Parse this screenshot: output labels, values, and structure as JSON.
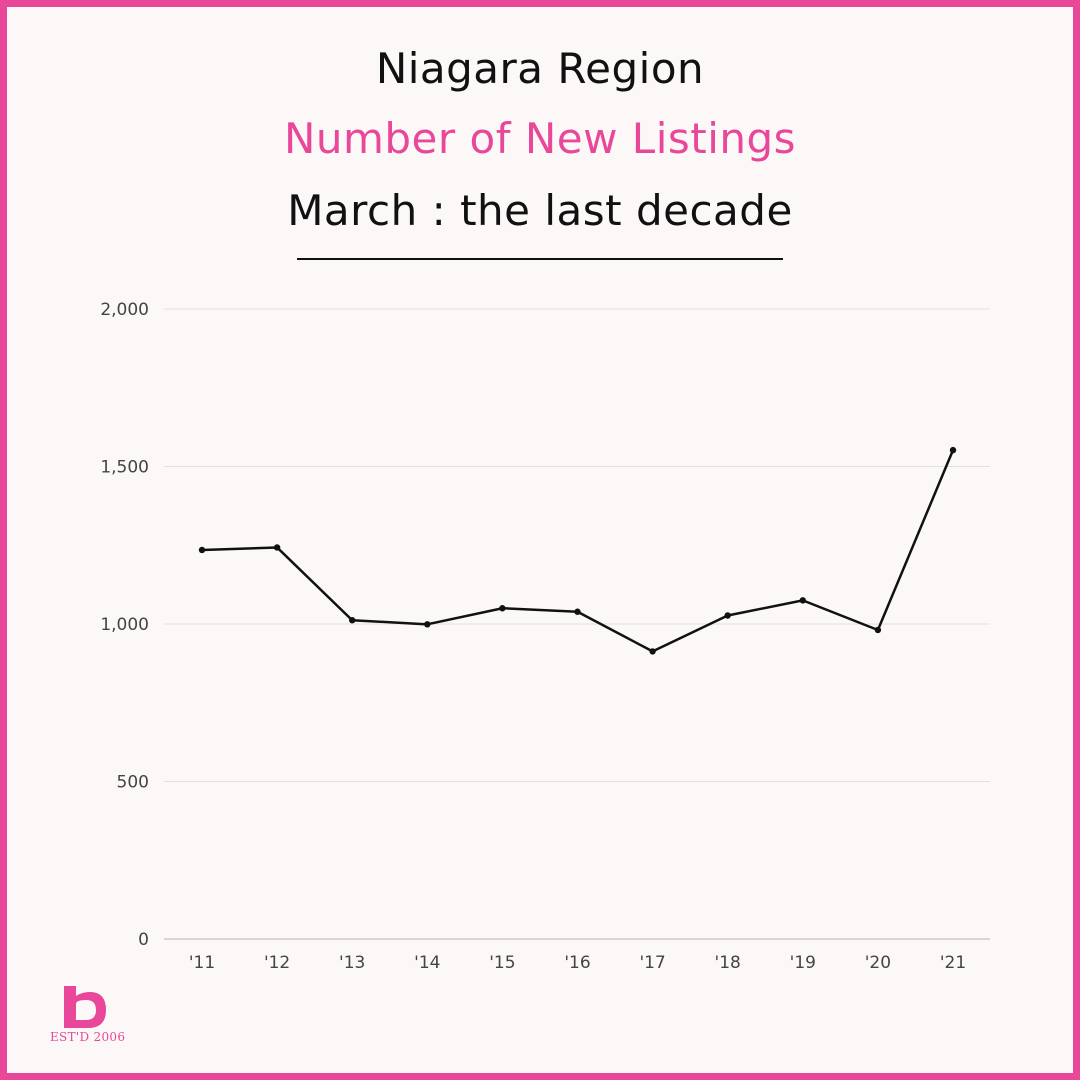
{
  "title": "Niagara Region",
  "subtitle": "Number of New Listings",
  "subtitle2": "March : the last decade",
  "colors": {
    "accent": "#e8479a",
    "line": "#111111",
    "grid": "#e4e0e0",
    "background": "#fdf8f8"
  },
  "logo": {
    "icon": "b-logo-icon",
    "text": "EST'D 2006"
  },
  "chart_data": {
    "type": "line",
    "categories": [
      "'11",
      "'12",
      "'13",
      "'14",
      "'15",
      "'16",
      "'17",
      "'18",
      "'19",
      "'20",
      "'21"
    ],
    "series": [
      {
        "values": [
          1235,
          1243,
          1012,
          999,
          1050,
          1039,
          913,
          1027,
          1075,
          981,
          1552
        ]
      }
    ],
    "ylim": [
      0,
      2000
    ],
    "yticks": [
      0,
      500,
      1000,
      1500,
      2000
    ],
    "ytick_labels": [
      "0",
      "500",
      "1,000",
      "1,500",
      "2,000"
    ],
    "grid": true,
    "xlabel": "",
    "ylabel": ""
  }
}
